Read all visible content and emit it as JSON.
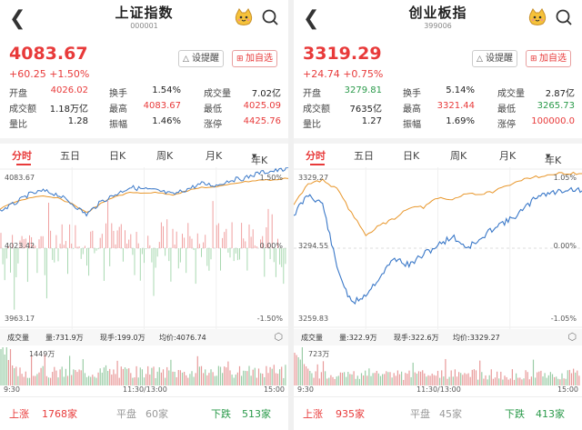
{
  "colors": {
    "up": "#e83a3a",
    "down": "#2a9a4a",
    "line_blue": "#3a78c8",
    "line_orange": "#e8962a"
  },
  "icons": {
    "back": "chevron-left-icon",
    "mascot": "cat-mascot-icon",
    "search": "search-icon",
    "bell": "bell-icon",
    "add": "plus-box-icon",
    "settings": "settings-icon"
  },
  "panels": [
    {
      "title": "上证指数",
      "code": "000001",
      "price": "4083.67",
      "change": "+60.25  +1.50%",
      "btn_alert": "设提醒",
      "btn_watch": "加自选",
      "stats": [
        [
          "开盘",
          "4026.02",
          "换手",
          "1.54%",
          "成交量",
          "7.02亿"
        ],
        [
          "成交额",
          "1.18万亿",
          "最高",
          "4083.67",
          "最低",
          "4025.09"
        ],
        [
          "量比",
          "1.28",
          "振幅",
          "1.46%",
          "涨停",
          "4425.76"
        ]
      ],
      "tabs": [
        "分时",
        "五日",
        "日K",
        "周K",
        "月K",
        "年K"
      ],
      "axis": {
        "top_left": "4083.67",
        "top_right": "1.50%",
        "mid_left": "4023.42",
        "mid_right": "0.00%",
        "bot_left": "3963.17",
        "bot_right": "-1.50%"
      },
      "vol_label": "成交量",
      "vol_info": [
        "量:731.9万",
        "现手:199.0万",
        "均价:4076.74"
      ],
      "vol_max": "1449万",
      "time_start": "9:30",
      "time_mid": "11:30/13:00",
      "time_end": "15:00",
      "breadth": {
        "up_label": "上涨",
        "up_count": "1768家",
        "flat_label": "平盘",
        "flat_count": "60家",
        "down_label": "下跌",
        "down_count": "513家"
      }
    },
    {
      "title": "创业板指",
      "code": "399006",
      "price": "3319.29",
      "change": "+24.74  +0.75%",
      "btn_alert": "设提醒",
      "btn_watch": "加自选",
      "stats": [
        [
          "开盘",
          "3279.81",
          "换手",
          "5.14%",
          "成交量",
          "2.87亿"
        ],
        [
          "成交额",
          "7635亿",
          "最高",
          "3321.44",
          "最低",
          "3265.73"
        ],
        [
          "量比",
          "1.27",
          "振幅",
          "1.69%",
          "涨停",
          "100000.0"
        ]
      ],
      "tabs": [
        "分时",
        "五日",
        "日K",
        "周K",
        "月K",
        "年K"
      ],
      "axis": {
        "top_left": "3329.27",
        "top_right": "1.05%",
        "mid_left": "3294.55",
        "mid_right": "0.00%",
        "bot_left": "3259.83",
        "bot_right": "-1.05%"
      },
      "vol_label": "成交量",
      "vol_info": [
        "量:322.9万",
        "现手:322.6万",
        "均价:3329.27"
      ],
      "vol_max": "723万",
      "time_start": "9:30",
      "time_mid": "11:30/13:00",
      "time_end": "15:00",
      "breadth": {
        "up_label": "上涨",
        "up_count": "935家",
        "flat_label": "平盘",
        "flat_count": "45家",
        "down_label": "下跌",
        "down_count": "413家"
      }
    }
  ]
}
